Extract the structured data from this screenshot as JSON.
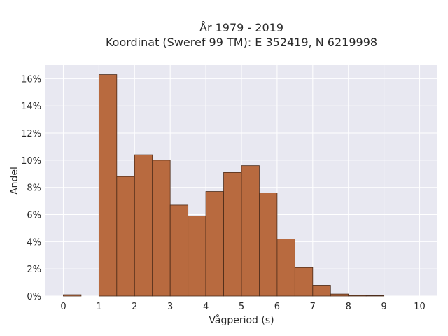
{
  "chart_data": {
    "type": "bar",
    "title_line1": "År 1979 - 2019",
    "title_line2": "Koordinat (Sweref 99 TM): E 352419, N 6219998",
    "xlabel": "Vågperiod (s)",
    "ylabel": "Andel",
    "x_ticks": [
      "0",
      "1",
      "2",
      "3",
      "4",
      "5",
      "6",
      "7",
      "8",
      "9",
      "10"
    ],
    "y_ticks": [
      "0%",
      "2%",
      "4%",
      "6%",
      "8%",
      "10%",
      "12%",
      "14%",
      "16%"
    ],
    "xlim": [
      -0.5,
      10.5
    ],
    "ylim": [
      0,
      17
    ],
    "bin_width": 0.5,
    "bins": [
      {
        "start": 0.0,
        "value": 0.1
      },
      {
        "start": 1.0,
        "value": 16.3
      },
      {
        "start": 1.5,
        "value": 8.8
      },
      {
        "start": 2.0,
        "value": 10.4
      },
      {
        "start": 2.5,
        "value": 10.0
      },
      {
        "start": 3.0,
        "value": 6.7
      },
      {
        "start": 3.5,
        "value": 5.9
      },
      {
        "start": 4.0,
        "value": 7.7
      },
      {
        "start": 4.5,
        "value": 9.1
      },
      {
        "start": 5.0,
        "value": 9.6
      },
      {
        "start": 5.5,
        "value": 7.6
      },
      {
        "start": 6.0,
        "value": 4.2
      },
      {
        "start": 6.5,
        "value": 2.1
      },
      {
        "start": 7.0,
        "value": 0.8
      },
      {
        "start": 7.5,
        "value": 0.15
      },
      {
        "start": 8.0,
        "value": 0.05
      },
      {
        "start": 8.5,
        "value": 0.03
      }
    ],
    "grid": true,
    "colors": {
      "bar_fill": "#b86a3f",
      "bar_stroke": "#4a2a18",
      "plot_bg": "#e8e8f1",
      "grid": "#ffffff"
    }
  }
}
